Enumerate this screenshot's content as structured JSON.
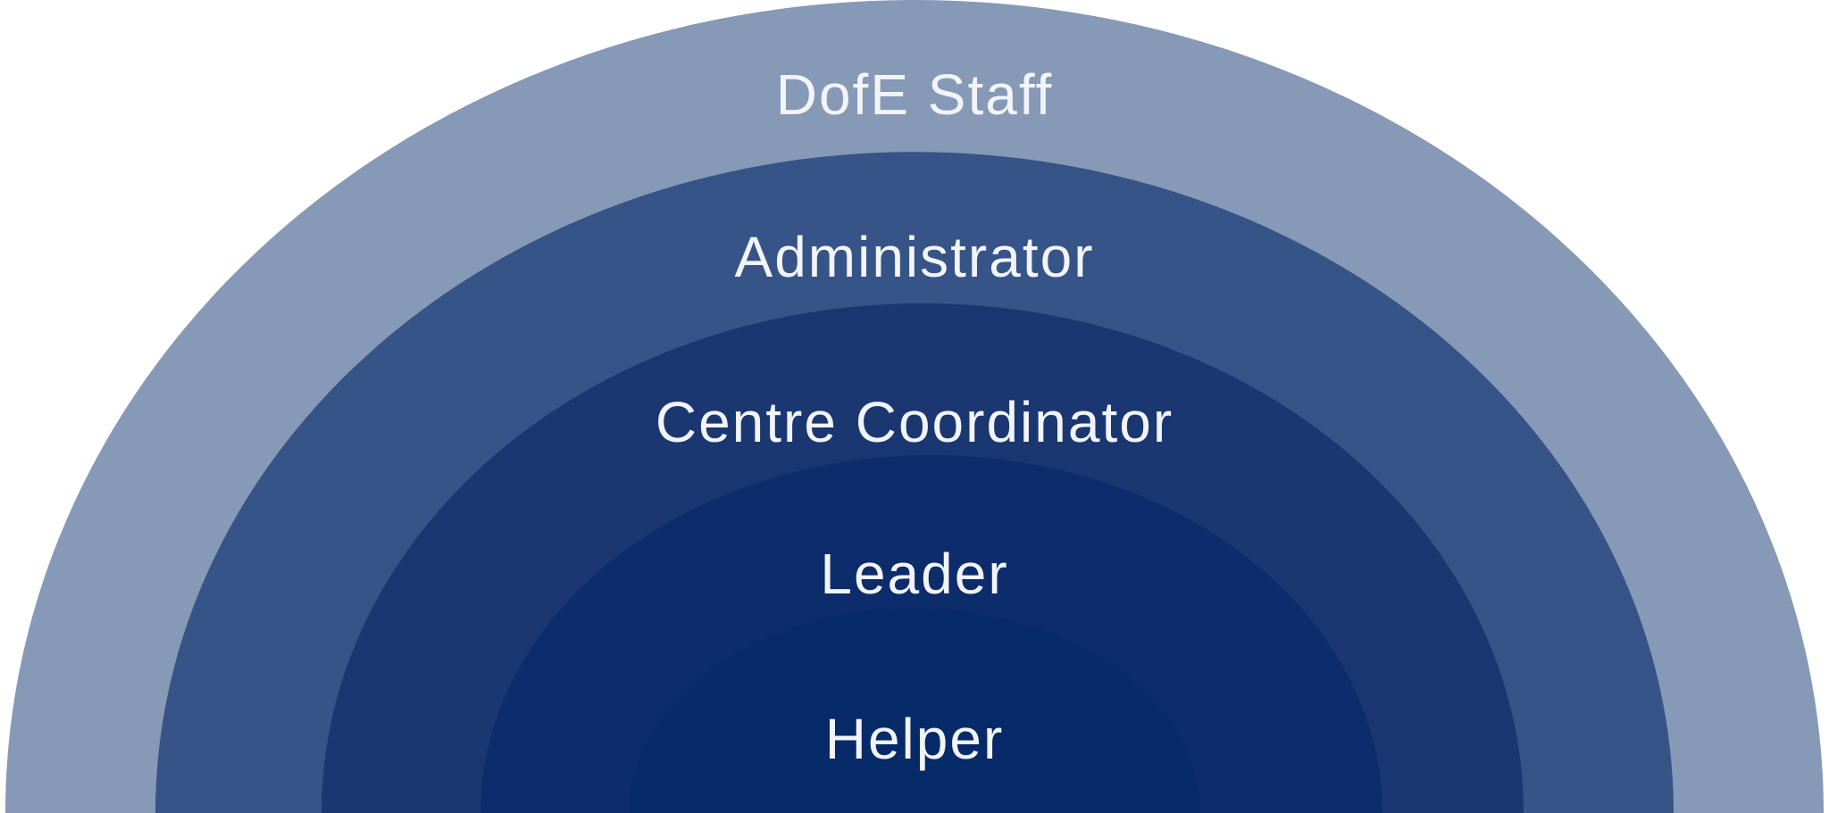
{
  "diagram": {
    "type": "concentric-semicircle-hierarchy",
    "background_color": "#ffffff",
    "label_color": "#f2f4f8",
    "layers": [
      {
        "label": "DofE Staff",
        "color": "#8699b7"
      },
      {
        "label": "Administrator",
        "color": "#365487"
      },
      {
        "label": "Centre Coordinator",
        "color": "#1a3772"
      },
      {
        "label": "Leader",
        "color": "#0d2c6b"
      },
      {
        "label": "Helper",
        "color": "#072a68"
      }
    ]
  }
}
